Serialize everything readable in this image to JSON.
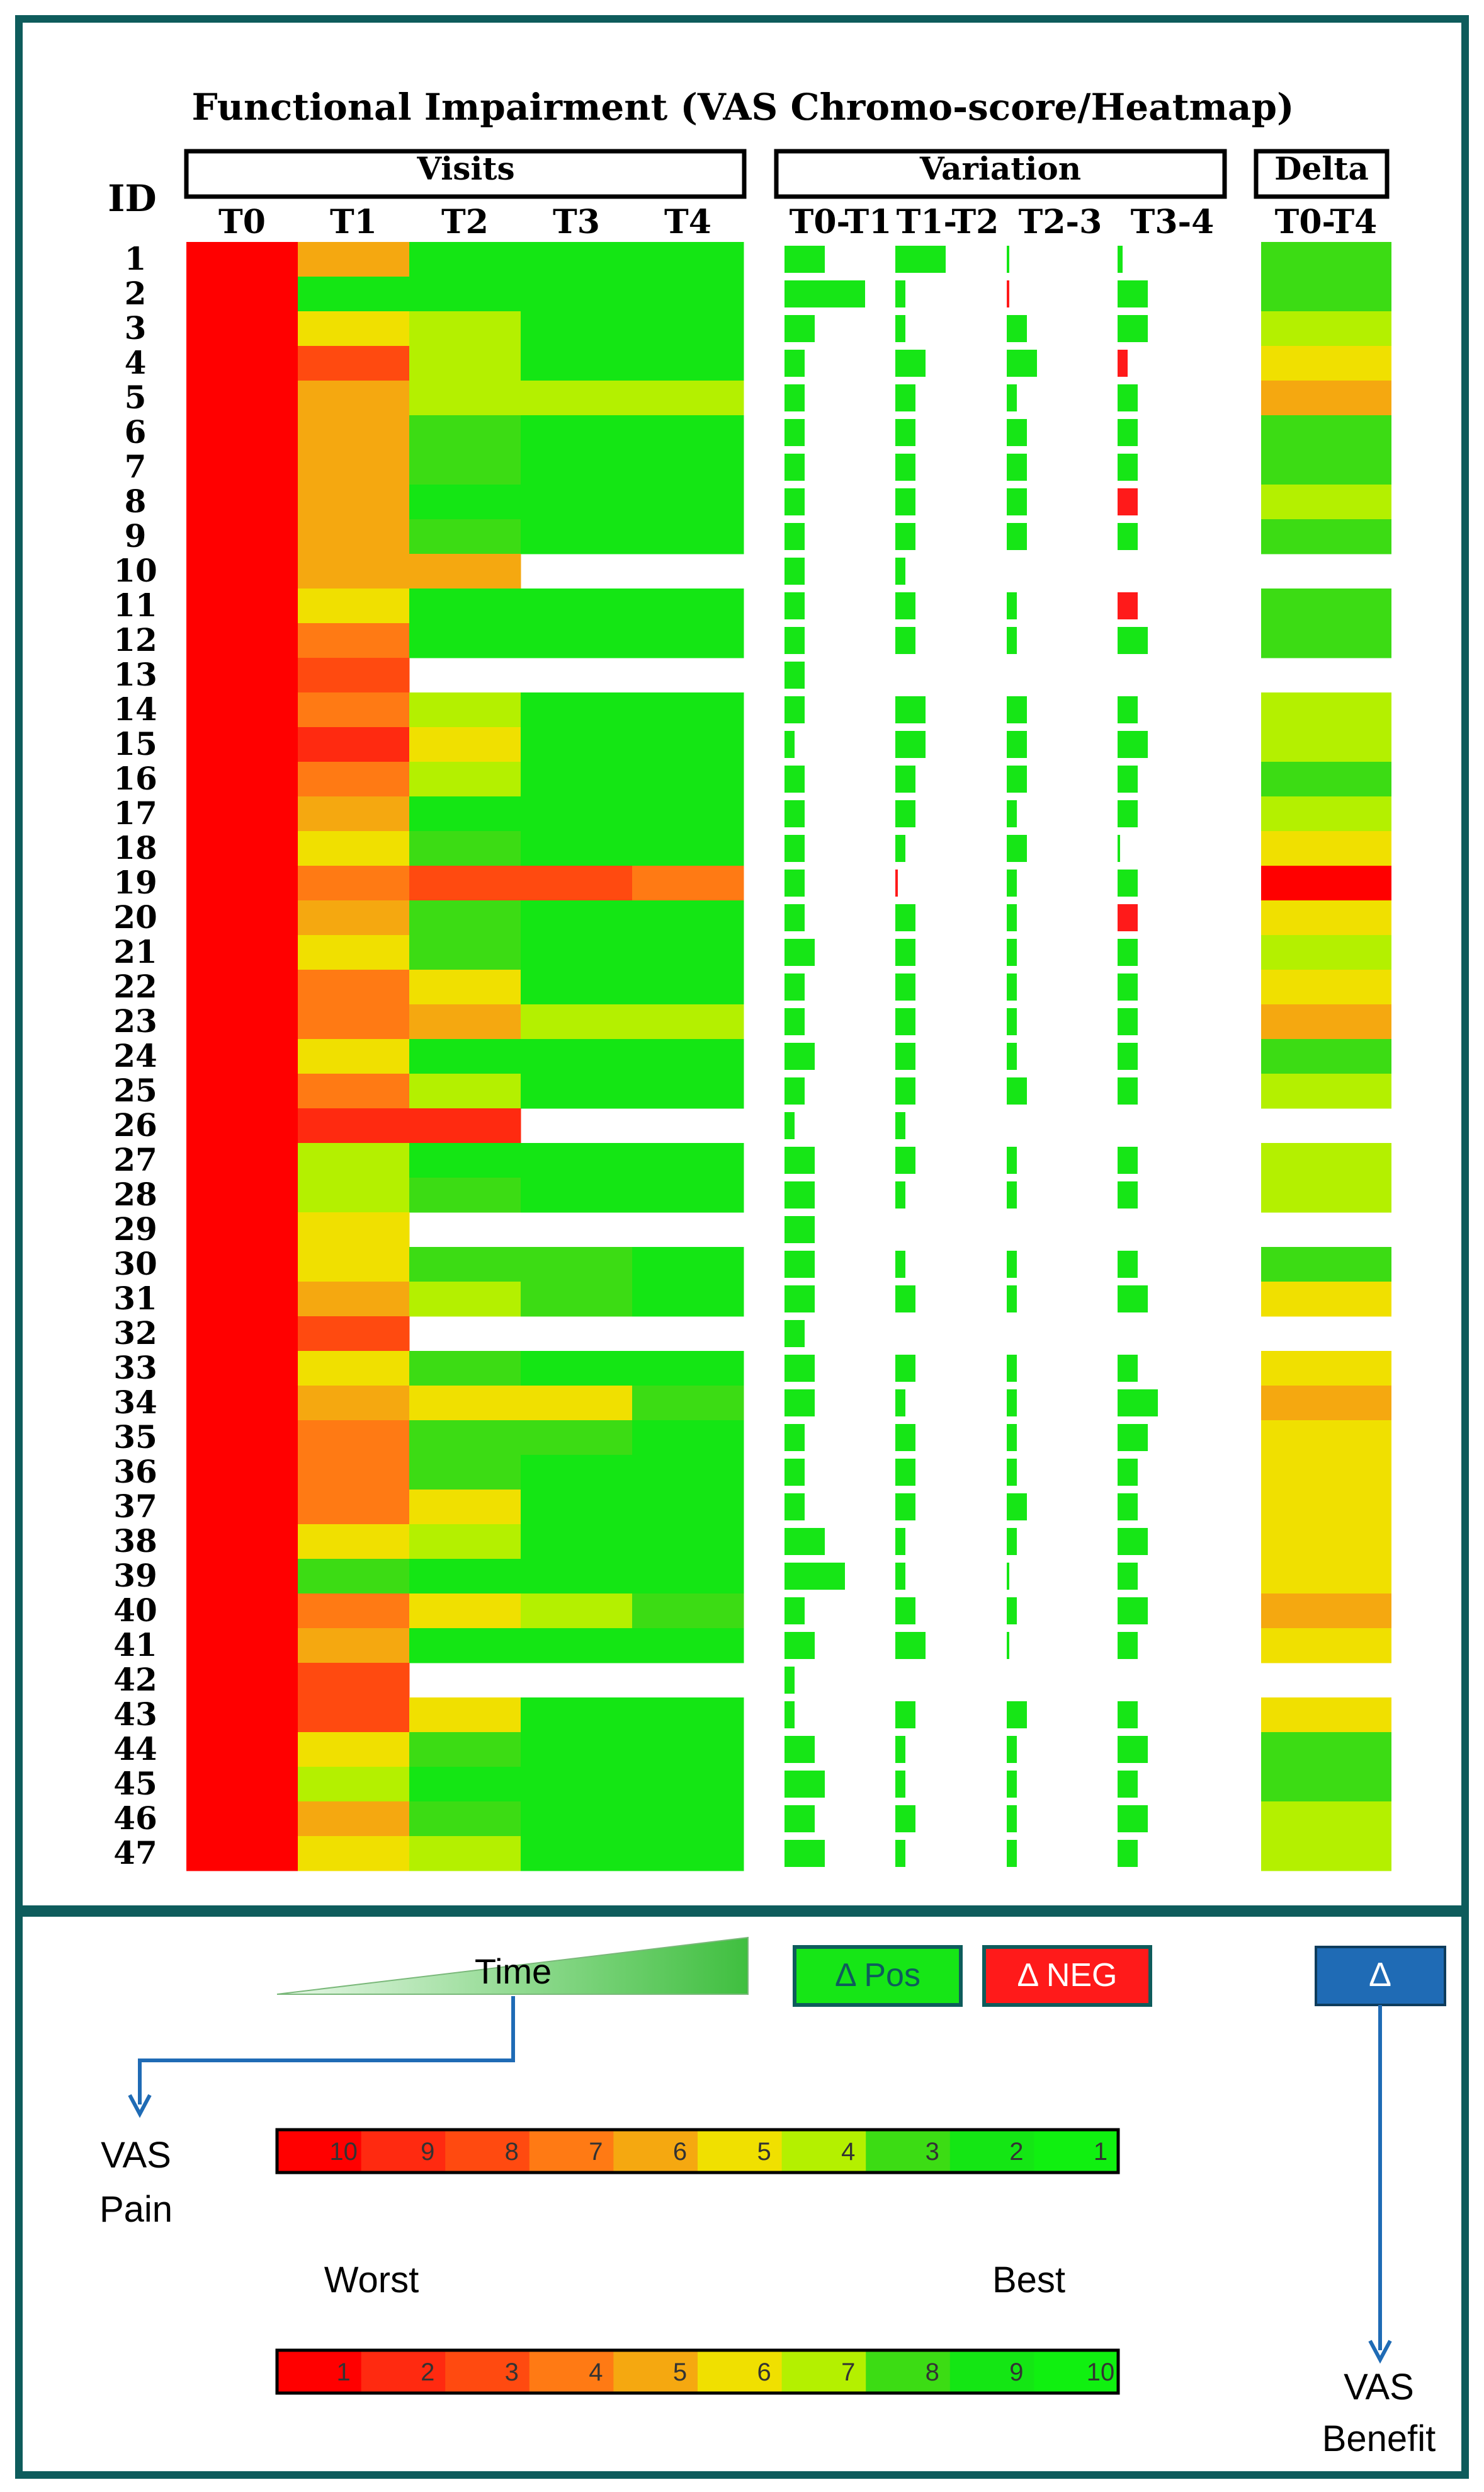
{
  "header": {
    "title": "Functional Impairment (VAS Chromo-score/Heatmap)",
    "id_label": "ID",
    "group_visits": "Visits",
    "group_variation": "Variation",
    "group_delta": "Delta"
  },
  "columns": {
    "visits": [
      "T0",
      "T1",
      "T2",
      "T3",
      "T4"
    ],
    "variation": [
      "T0-T1",
      "T1-T2",
      "T2-3",
      "T3-4"
    ],
    "delta": [
      "T0-T4"
    ]
  },
  "legend": {
    "time_label": "Time",
    "pos_label": "Δ Pos",
    "neg_label": "Δ NEG",
    "delta_label": "Δ",
    "vas_pain_label": [
      "VAS",
      "Pain"
    ],
    "vas_benefit_label": [
      "VAS",
      "Benefit"
    ],
    "worst_label": "Worst",
    "best_label": "Best",
    "pain_scale": [
      "10",
      "9",
      "8",
      "7",
      "6",
      "5",
      "4",
      "3",
      "2",
      "1"
    ],
    "benefit_scale": [
      "1",
      "2",
      "3",
      "4",
      "5",
      "6",
      "7",
      "8",
      "9",
      "10"
    ]
  },
  "colors": {
    "frame": "#0e5c5c",
    "pos": "#16e616",
    "neg": "#ff1a1a",
    "delta_box": "#1f6bb5",
    "scale": [
      "#ff0000",
      "#ff2a10",
      "#ff4a10",
      "#ff7a14",
      "#f5a810",
      "#f0e000",
      "#b4f000",
      "#3cdc14",
      "#14e614",
      "#10f010"
    ]
  },
  "chart_data": {
    "type": "heatmap",
    "title": "Functional Impairment (VAS Chromo-score/Heatmap)",
    "xlabel": "",
    "ylabel": "ID",
    "value_scale": "VAS pain 10 (worst, red) to 1 (best, green); null = missing visit",
    "ids": [
      1,
      2,
      3,
      4,
      5,
      6,
      7,
      8,
      9,
      10,
      11,
      12,
      13,
      14,
      15,
      16,
      17,
      18,
      19,
      20,
      21,
      22,
      23,
      24,
      25,
      26,
      27,
      28,
      29,
      30,
      31,
      32,
      33,
      34,
      35,
      36,
      37,
      38,
      39,
      40,
      41,
      42,
      43,
      44,
      45,
      46,
      47
    ],
    "visits": [
      [
        10,
        6,
        2,
        2,
        2
      ],
      [
        10,
        2,
        2,
        2,
        2
      ],
      [
        10,
        5,
        4,
        2,
        2
      ],
      [
        10,
        8,
        4,
        2,
        2
      ],
      [
        10,
        6,
        4,
        4,
        4
      ],
      [
        10,
        6,
        3,
        2,
        2
      ],
      [
        10,
        6,
        3,
        2,
        2
      ],
      [
        10,
        6,
        2,
        2,
        2
      ],
      [
        10,
        6,
        3,
        2,
        2
      ],
      [
        10,
        6,
        6,
        null,
        null
      ],
      [
        10,
        5,
        2,
        2,
        2
      ],
      [
        10,
        7,
        2,
        2,
        2
      ],
      [
        10,
        8,
        null,
        null,
        null
      ],
      [
        10,
        7,
        4,
        2,
        2
      ],
      [
        10,
        9,
        5,
        2,
        2
      ],
      [
        10,
        7,
        4,
        2,
        2
      ],
      [
        10,
        6,
        2,
        2,
        2
      ],
      [
        10,
        5,
        3,
        2,
        2
      ],
      [
        10,
        7,
        8,
        8,
        7
      ],
      [
        10,
        6,
        3,
        2,
        2
      ],
      [
        10,
        5,
        3,
        2,
        2
      ],
      [
        10,
        7,
        5,
        2,
        2
      ],
      [
        10,
        7,
        6,
        4,
        4
      ],
      [
        10,
        5,
        2,
        2,
        2
      ],
      [
        10,
        7,
        4,
        2,
        2
      ],
      [
        10,
        9,
        9,
        null,
        null
      ],
      [
        10,
        4,
        2,
        2,
        2
      ],
      [
        10,
        4,
        3,
        2,
        2
      ],
      [
        10,
        5,
        null,
        null,
        null
      ],
      [
        10,
        5,
        3,
        3,
        2
      ],
      [
        10,
        6,
        4,
        3,
        2
      ],
      [
        10,
        8,
        null,
        null,
        null
      ],
      [
        10,
        5,
        3,
        2,
        2
      ],
      [
        10,
        6,
        5,
        5,
        3
      ],
      [
        10,
        7,
        3,
        3,
        2
      ],
      [
        10,
        7,
        3,
        2,
        2
      ],
      [
        10,
        7,
        5,
        2,
        2
      ],
      [
        10,
        5,
        4,
        2,
        2
      ],
      [
        10,
        3,
        2,
        2,
        2
      ],
      [
        10,
        7,
        5,
        4,
        3
      ],
      [
        10,
        6,
        2,
        2,
        2
      ],
      [
        10,
        8,
        null,
        null,
        null
      ],
      [
        10,
        8,
        5,
        2,
        2
      ],
      [
        10,
        5,
        3,
        2,
        2
      ],
      [
        10,
        4,
        2,
        2,
        2
      ],
      [
        10,
        6,
        3,
        2,
        2
      ],
      [
        10,
        5,
        4,
        2,
        2
      ]
    ],
    "variation": [
      [
        4,
        5,
        0,
        0.5
      ],
      [
        8,
        1,
        -0.2,
        3
      ],
      [
        3,
        1,
        2,
        3
      ],
      [
        2,
        3,
        3,
        -1
      ],
      [
        2,
        2,
        1,
        2
      ],
      [
        2,
        2,
        2,
        2
      ],
      [
        2,
        2,
        2,
        2
      ],
      [
        2,
        2,
        2,
        -2
      ],
      [
        2,
        2,
        2,
        2
      ],
      [
        2,
        1,
        null,
        null
      ],
      [
        2,
        2,
        1,
        -2
      ],
      [
        2,
        2,
        1,
        3
      ],
      [
        2,
        null,
        null,
        null
      ],
      [
        2,
        3,
        2,
        2
      ],
      [
        1,
        3,
        2,
        3
      ],
      [
        2,
        2,
        2,
        2
      ],
      [
        2,
        2,
        1,
        2
      ],
      [
        2,
        1,
        2,
        0
      ],
      [
        2,
        -0.1,
        1,
        2
      ],
      [
        2,
        2,
        1,
        -2
      ],
      [
        3,
        2,
        1,
        2
      ],
      [
        2,
        2,
        1,
        2
      ],
      [
        2,
        2,
        1,
        2
      ],
      [
        3,
        2,
        1,
        2
      ],
      [
        2,
        2,
        2,
        2
      ],
      [
        1,
        1,
        null,
        null
      ],
      [
        3,
        2,
        1,
        2
      ],
      [
        3,
        1,
        1,
        2
      ],
      [
        3,
        null,
        null,
        null
      ],
      [
        3,
        1,
        1,
        2
      ],
      [
        3,
        2,
        1,
        3
      ],
      [
        2,
        null,
        null,
        null
      ],
      [
        3,
        2,
        1,
        2
      ],
      [
        3,
        1,
        1,
        4
      ],
      [
        2,
        2,
        1,
        3
      ],
      [
        2,
        2,
        1,
        2
      ],
      [
        2,
        2,
        2,
        2
      ],
      [
        4,
        1,
        1,
        3
      ],
      [
        6,
        1,
        0,
        2
      ],
      [
        2,
        2,
        1,
        3
      ],
      [
        3,
        3,
        0.1,
        2
      ],
      [
        1,
        null,
        null,
        null
      ],
      [
        1,
        2,
        2,
        2
      ],
      [
        3,
        1,
        1,
        3
      ],
      [
        4,
        1,
        1,
        2
      ],
      [
        3,
        2,
        1,
        3
      ],
      [
        4,
        1,
        1,
        2
      ]
    ],
    "delta": [
      8,
      8,
      7,
      6,
      5,
      8,
      8,
      7,
      8,
      null,
      8,
      8,
      null,
      7,
      7,
      8,
      7,
      6,
      1,
      6,
      7,
      6,
      5,
      8,
      7,
      null,
      7,
      7,
      null,
      8,
      6,
      null,
      6,
      5,
      6,
      6,
      6,
      6,
      6,
      5,
      6,
      null,
      6,
      8,
      8,
      7,
      7
    ]
  }
}
